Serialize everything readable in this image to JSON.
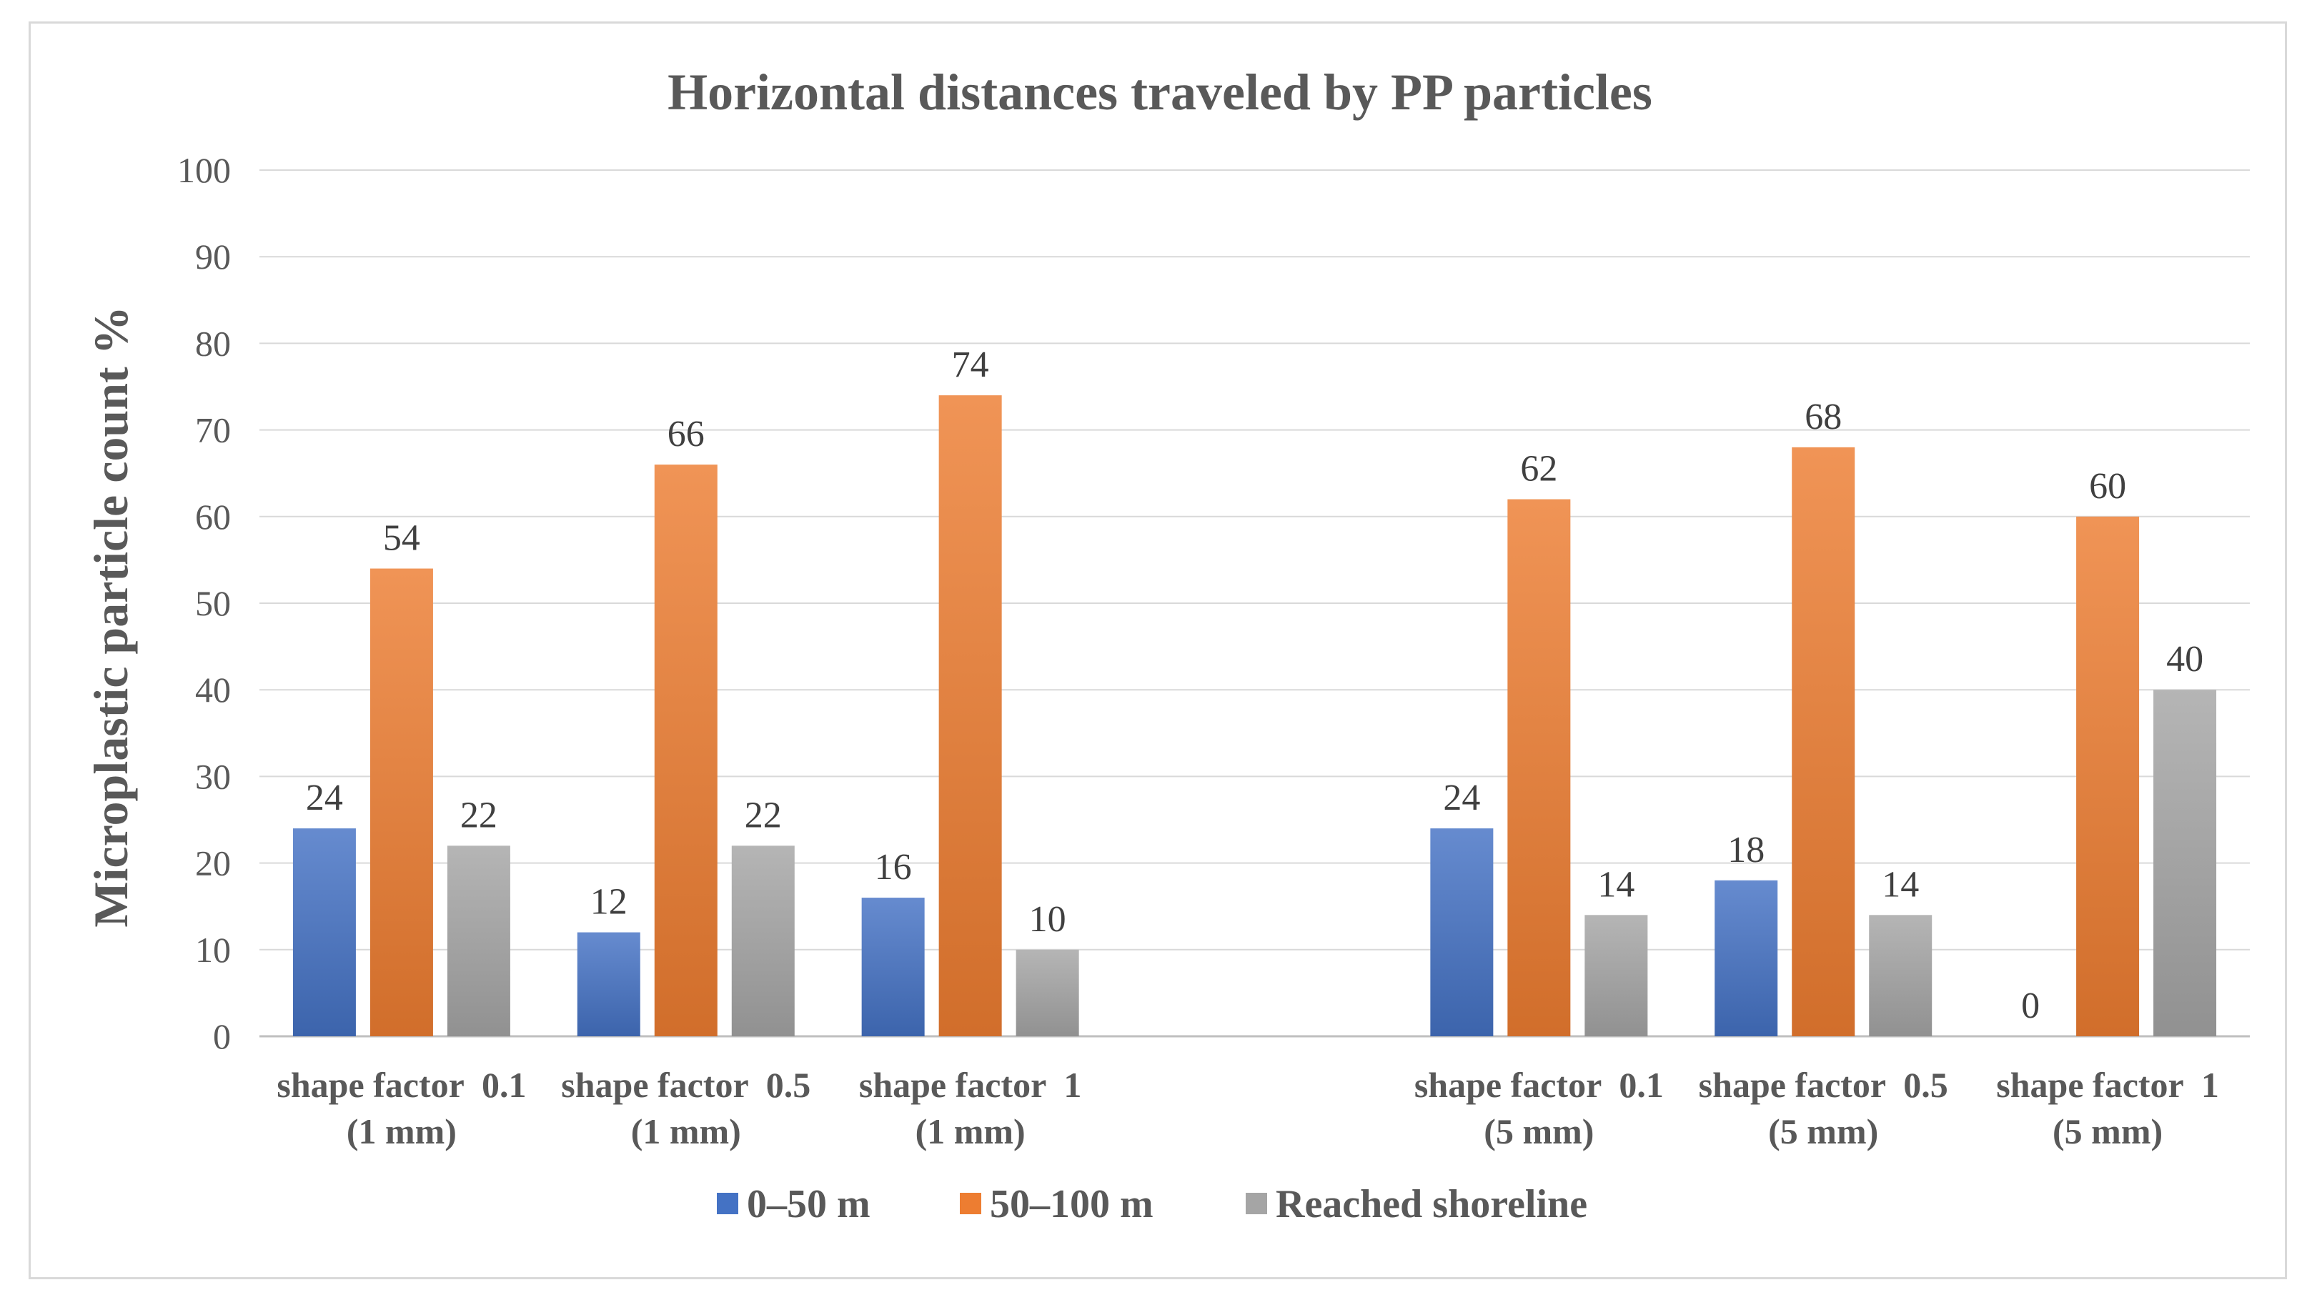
{
  "chart_data": {
    "type": "bar",
    "title": "Horizontal distances traveled by PP particles",
    "ylabel": "Microplastic particle count %",
    "xlabel": "",
    "ylim": [
      0,
      100
    ],
    "yticks": [
      0,
      10,
      20,
      30,
      40,
      50,
      60,
      70,
      80,
      90,
      100
    ],
    "grid": true,
    "legend_position": "bottom",
    "categories": [
      {
        "line1": "shape factor  0.1",
        "line2": "(1 mm)"
      },
      {
        "line1": "shape factor  0.5",
        "line2": "(1 mm)"
      },
      {
        "line1": "shape factor  1",
        "line2": "(1 mm)"
      },
      {
        "line1": "",
        "line2": ""
      },
      {
        "line1": "shape factor  0.1",
        "line2": "(5 mm)"
      },
      {
        "line1": "shape factor  0.5",
        "line2": "(5 mm)"
      },
      {
        "line1": "shape factor  1",
        "line2": "(5 mm)"
      }
    ],
    "series": [
      {
        "name": "0–50 m",
        "color": "#4472c4",
        "values": [
          24,
          12,
          16,
          null,
          24,
          18,
          0
        ]
      },
      {
        "name": "50–100 m",
        "color": "#ed7d31",
        "values": [
          54,
          66,
          74,
          null,
          62,
          68,
          60
        ]
      },
      {
        "name": "Reached shoreline",
        "color": "#a5a5a5",
        "values": [
          22,
          22,
          10,
          null,
          14,
          14,
          40
        ]
      }
    ]
  }
}
